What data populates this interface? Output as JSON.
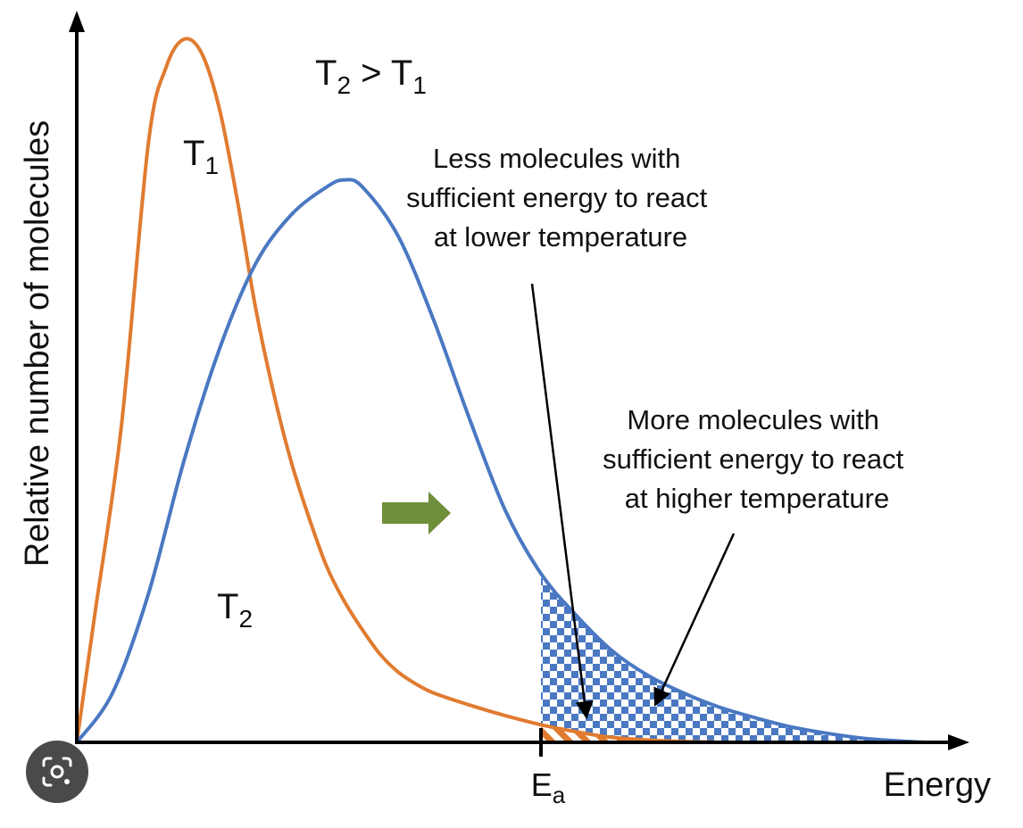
{
  "chart_data": {
    "type": "line",
    "title": "",
    "xlabel": "Energy",
    "ylabel": "Relative number of molecules",
    "x_tick_labels": [
      {
        "base": "E",
        "sub": "a"
      }
    ],
    "series": [
      {
        "label": {
          "base": "T",
          "sub": "1"
        },
        "color": "#E07B30",
        "x": [
          0,
          0.02,
          0.05,
          0.08,
          0.1,
          0.12,
          0.14,
          0.16,
          0.18,
          0.2,
          0.22,
          0.24,
          0.26,
          0.28,
          0.3,
          0.32,
          0.34,
          0.36,
          0.38,
          0.4,
          0.44,
          0.48,
          0.52,
          0.56,
          0.6,
          0.66,
          0.72
        ],
        "y": [
          0,
          0.18,
          0.45,
          0.85,
          0.96,
          1.0,
          0.98,
          0.9,
          0.77,
          0.62,
          0.5,
          0.4,
          0.32,
          0.25,
          0.2,
          0.16,
          0.125,
          0.1,
          0.083,
          0.07,
          0.053,
          0.038,
          0.025,
          0.015,
          0.007,
          0.002,
          0.0
        ]
      },
      {
        "label": {
          "base": "T",
          "sub": "2"
        },
        "color": "#4A78C2",
        "x": [
          0,
          0.04,
          0.08,
          0.12,
          0.16,
          0.2,
          0.24,
          0.28,
          0.3,
          0.32,
          0.36,
          0.4,
          0.44,
          0.48,
          0.52,
          0.56,
          0.6,
          0.64,
          0.68,
          0.72,
          0.76,
          0.8,
          0.84,
          0.88,
          0.92,
          0.95
        ],
        "y": [
          0,
          0.07,
          0.21,
          0.4,
          0.56,
          0.68,
          0.75,
          0.79,
          0.8,
          0.79,
          0.72,
          0.6,
          0.46,
          0.33,
          0.24,
          0.18,
          0.13,
          0.095,
          0.07,
          0.05,
          0.035,
          0.022,
          0.013,
          0.006,
          0.002,
          0.0
        ]
      }
    ],
    "activation_energy_x": 0.52,
    "grid": false,
    "legend": "none"
  },
  "annotations": {
    "temperature_relation": {
      "t2": "T",
      "t2_sub": "2",
      "gt": " > ",
      "t1": "T",
      "t1_sub": "1"
    },
    "lower_temp_note": [
      "Less molecules with",
      "sufficient energy to react",
      "at lower temperature"
    ],
    "higher_temp_note": [
      "More molecules with",
      "sufficient energy to react",
      "at higher temperature"
    ]
  },
  "colors": {
    "t1_curve": "#E07B30",
    "t2_curve": "#4A78C2",
    "shift_arrow": "#6F8E3A",
    "axis": "#000000"
  },
  "overlay": {
    "lens_button_icon": "lens-camera-icon"
  }
}
